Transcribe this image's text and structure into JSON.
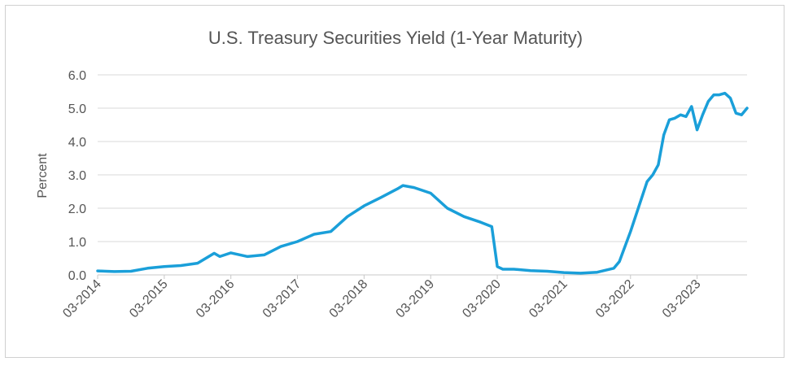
{
  "chart_data": {
    "type": "line",
    "title": "U.S. Treasury Securities Yield (1-Year Maturity)",
    "ylabel": "Percent",
    "xlabel": "",
    "ylim": [
      0,
      6
    ],
    "yticks": [
      "0.0",
      "1.0",
      "2.0",
      "3.0",
      "4.0",
      "5.0",
      "6.0"
    ],
    "xlim": [
      "2014-03",
      "2023-12"
    ],
    "xticks": [
      "03-2014",
      "03-2015",
      "03-2016",
      "03-2017",
      "03-2018",
      "03-2019",
      "03-2020",
      "03-2021",
      "03-2022",
      "03-2023"
    ],
    "grid": true,
    "line_color": "#1a9fd9",
    "series": [
      {
        "x": [
          "2014-03",
          "2014-06",
          "2014-09",
          "2014-12",
          "2015-03",
          "2015-06",
          "2015-09",
          "2015-12",
          "2016-01",
          "2016-03",
          "2016-06",
          "2016-09",
          "2016-12",
          "2017-03",
          "2017-06",
          "2017-09",
          "2017-12",
          "2018-03",
          "2018-06",
          "2018-09",
          "2018-10",
          "2018-12",
          "2019-03",
          "2019-06",
          "2019-09",
          "2019-12",
          "2020-02",
          "2020-03",
          "2020-04",
          "2020-06",
          "2020-09",
          "2020-12",
          "2021-03",
          "2021-06",
          "2021-09",
          "2021-12",
          "2022-01",
          "2022-03",
          "2022-04",
          "2022-06",
          "2022-07",
          "2022-08",
          "2022-09",
          "2022-10",
          "2022-11",
          "2022-12",
          "2023-01",
          "2023-02",
          "2023-03",
          "2023-04",
          "2023-05",
          "2023-06",
          "2023-07",
          "2023-08",
          "2023-09",
          "2023-10",
          "2023-11",
          "2023-12"
        ],
        "y": [
          0.12,
          0.1,
          0.11,
          0.2,
          0.25,
          0.28,
          0.35,
          0.65,
          0.55,
          0.66,
          0.55,
          0.6,
          0.85,
          1.0,
          1.22,
          1.3,
          1.75,
          2.07,
          2.32,
          2.58,
          2.68,
          2.62,
          2.45,
          2.0,
          1.75,
          1.58,
          1.45,
          0.25,
          0.17,
          0.17,
          0.13,
          0.11,
          0.07,
          0.05,
          0.08,
          0.2,
          0.4,
          1.3,
          1.8,
          2.8,
          3.0,
          3.3,
          4.2,
          4.65,
          4.7,
          4.8,
          4.75,
          5.05,
          4.35,
          4.8,
          5.2,
          5.4,
          5.4,
          5.45,
          5.3,
          4.85,
          4.8,
          5.0
        ]
      }
    ]
  }
}
